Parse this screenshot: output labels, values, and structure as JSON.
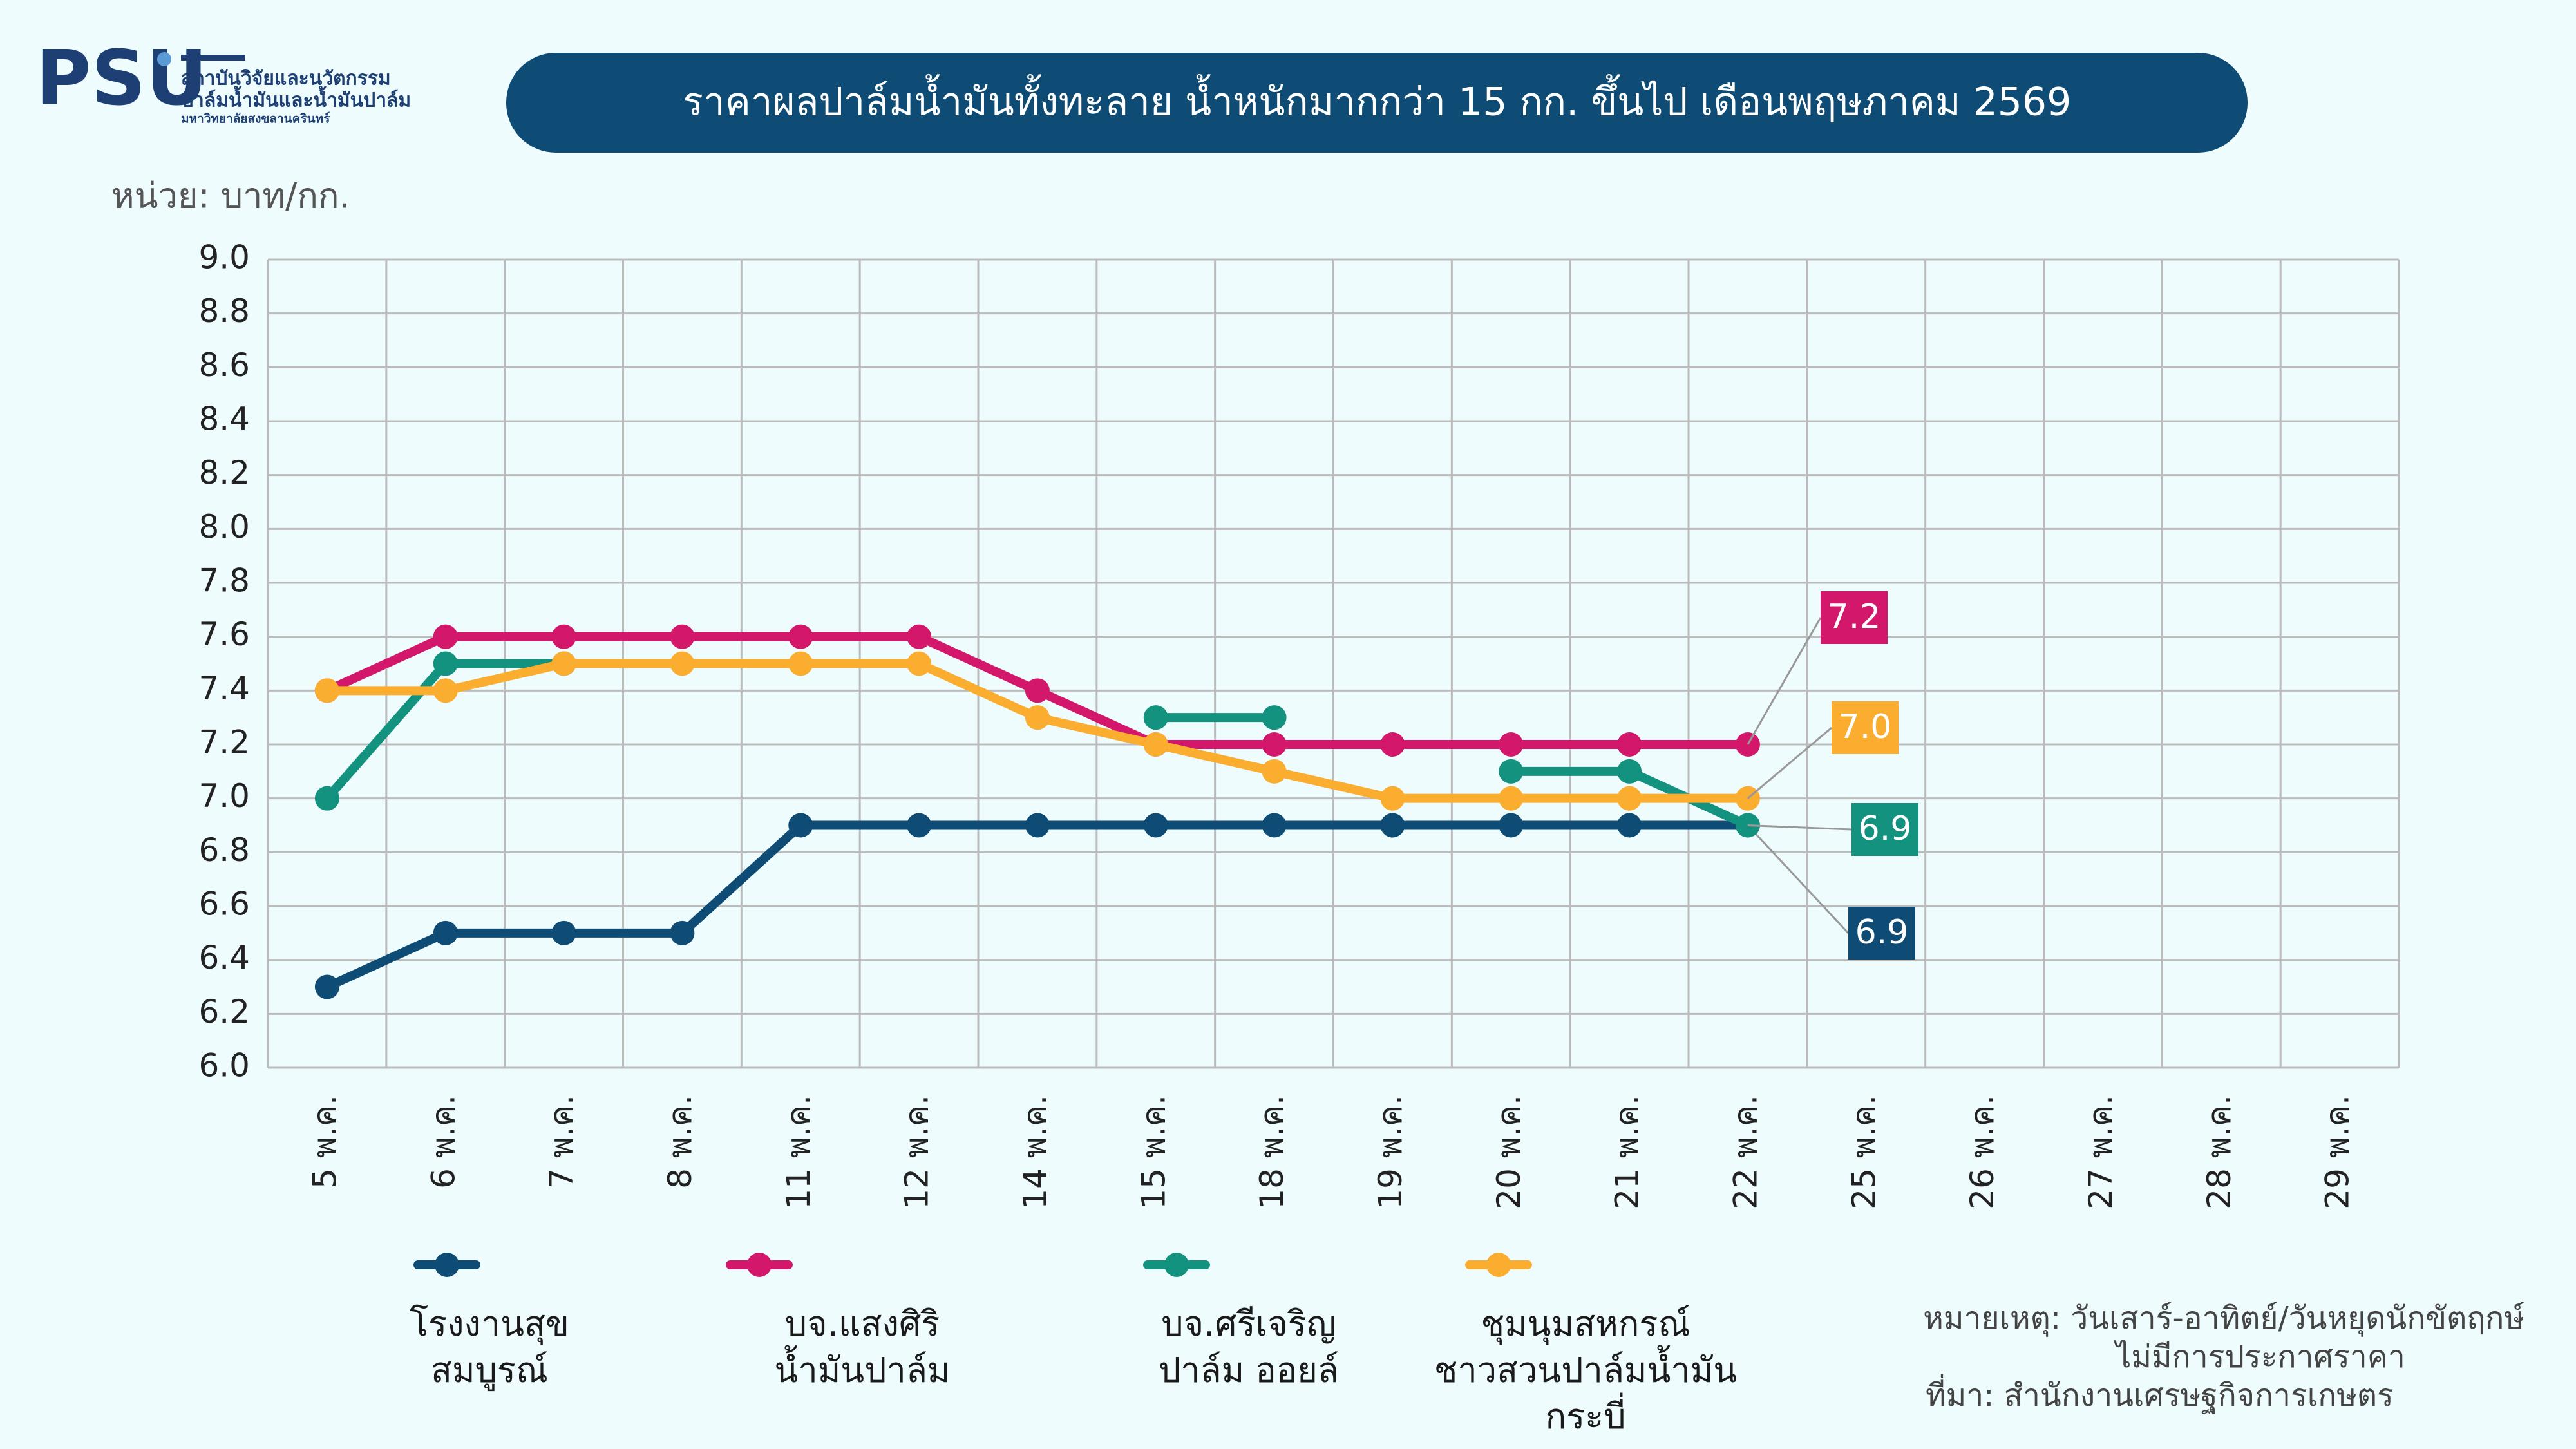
{
  "logo": {
    "mark": "PSU",
    "lines": [
      "สถาบันวิจัยและนวัตกรรม",
      "ปาล์มน้ำมันและน้ำมันปาล์ม",
      "มหาวิทยาลัยสงขลานครินทร์"
    ]
  },
  "unit": "หน่วย: บาท/กก.",
  "notes": [
    "หมายเหตุ: วันเสาร์-อาทิตย์/วันหยุดนักขัตฤกษ์",
    "ไม่มีการประกาศราคา",
    "ที่มา: สำนักงานเศรษฐกิจการเกษตร"
  ],
  "chart_data": {
    "type": "line",
    "title": "ราคาผลปาล์มน้ำมันทั้งทะลาย น้ำหนักมากกว่า 15 กก. ขึ้นไป เดือนพฤษภาคม 2569",
    "categories": [
      "5 พ.ค.",
      "6 พ.ค.",
      "7 พ.ค.",
      "8 พ.ค.",
      "11 พ.ค.",
      "12 พ.ค.",
      "14 พ.ค.",
      "15 พ.ค.",
      "18 พ.ค.",
      "19 พ.ค.",
      "20 พ.ค.",
      "21 พ.ค.",
      "22 พ.ค.",
      "25 พ.ค.",
      "26 พ.ค.",
      "27 พ.ค.",
      "28 พ.ค.",
      "29 พ.ค."
    ],
    "series": [
      {
        "name": "โรงงานสุขสมบูรณ์",
        "color": "#0e4c75",
        "values": [
          6.3,
          6.5,
          6.5,
          6.5,
          6.9,
          6.9,
          6.9,
          6.9,
          6.9,
          6.9,
          6.9,
          6.9,
          6.9,
          null,
          null,
          null,
          null,
          null
        ],
        "value_labels": [
          null,
          null,
          null,
          null,
          null,
          null,
          null,
          null,
          null,
          null,
          null,
          null,
          "6.9",
          null,
          null,
          null,
          null,
          null
        ]
      },
      {
        "name": "บจ.แสงศิริน้ำมันปาล์ม",
        "color": "#d3186c",
        "values": [
          7.4,
          7.6,
          7.6,
          7.6,
          7.6,
          7.6,
          7.4,
          7.2,
          7.2,
          7.2,
          7.2,
          7.2,
          7.2,
          null,
          null,
          null,
          null,
          null
        ],
        "value_labels": [
          null,
          null,
          null,
          null,
          null,
          null,
          null,
          null,
          null,
          null,
          null,
          null,
          "7.2",
          null,
          null,
          null,
          null,
          null
        ]
      },
      {
        "name": "บจ.ศรีเจริญปาล์ม ออยล์",
        "color": "#13927f",
        "values": [
          7.0,
          7.5,
          7.5,
          null,
          null,
          null,
          null,
          7.3,
          7.3,
          null,
          7.1,
          7.1,
          6.9,
          null,
          null,
          null,
          null,
          null
        ],
        "value_labels": [
          null,
          null,
          null,
          null,
          null,
          null,
          null,
          null,
          null,
          null,
          null,
          null,
          "6.9",
          null,
          null,
          null,
          null,
          null
        ]
      },
      {
        "name": "ชุมนุมสหกรณ์ชาวสวนปาล์มน้ำมันกระบี่",
        "color": "#fbad30",
        "values": [
          7.4,
          7.4,
          7.5,
          7.5,
          7.5,
          7.5,
          7.3,
          7.2,
          7.1,
          7.0,
          7.0,
          7.0,
          7.0,
          null,
          null,
          null,
          null,
          null
        ],
        "value_labels": [
          null,
          null,
          null,
          null,
          null,
          null,
          null,
          null,
          null,
          null,
          null,
          null,
          "7.0",
          null,
          null,
          null,
          null,
          null
        ]
      }
    ],
    "ylim": [
      6,
      9
    ],
    "yticks": [
      {
        "value": 6,
        "label": "6.0"
      },
      6.2,
      6.4,
      6.6,
      6.8,
      {
        "value": 7,
        "label": "7.0"
      },
      7.2,
      7.4,
      7.6,
      7.8,
      {
        "value": 8,
        "label": "8.0"
      },
      8.2,
      8.4,
      8.6,
      8.8,
      {
        "value": 9,
        "label": "9.0"
      }
    ],
    "grid": true
  }
}
